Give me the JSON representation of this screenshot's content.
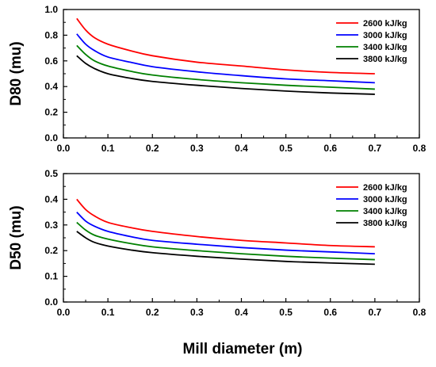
{
  "xlabel_shared": "Mill diameter (m)",
  "chart_data": [
    {
      "type": "line",
      "title": "",
      "xlabel": "",
      "ylabel": "D80 (mu)",
      "xlim": [
        0.0,
        0.8
      ],
      "ylim": [
        0.0,
        1.0
      ],
      "xticks": [
        "0.0",
        "0.1",
        "0.2",
        "0.3",
        "0.4",
        "0.5",
        "0.6",
        "0.7",
        "0.8"
      ],
      "yticks": [
        "0.0",
        "0.2",
        "0.4",
        "0.6",
        "0.8",
        "1.0"
      ],
      "grid": false,
      "legend_position": "top-right",
      "x": [
        0.03,
        0.05,
        0.07,
        0.1,
        0.15,
        0.2,
        0.3,
        0.4,
        0.5,
        0.6,
        0.7
      ],
      "series": [
        {
          "name": "2600 kJ/kg",
          "color": "#ff0000",
          "values": [
            0.93,
            0.84,
            0.78,
            0.73,
            0.68,
            0.64,
            0.59,
            0.56,
            0.53,
            0.51,
            0.5
          ]
        },
        {
          "name": "3000 kJ/kg",
          "color": "#0000ff",
          "values": [
            0.81,
            0.73,
            0.68,
            0.63,
            0.59,
            0.555,
            0.515,
            0.485,
            0.46,
            0.445,
            0.43
          ]
        },
        {
          "name": "3400 kJ/kg",
          "color": "#008000",
          "values": [
            0.72,
            0.65,
            0.6,
            0.56,
            0.52,
            0.49,
            0.455,
            0.43,
            0.41,
            0.395,
            0.38
          ]
        },
        {
          "name": "3800 kJ/kg",
          "color": "#000000",
          "values": [
            0.64,
            0.58,
            0.54,
            0.5,
            0.465,
            0.44,
            0.41,
            0.385,
            0.365,
            0.35,
            0.34
          ]
        }
      ]
    },
    {
      "type": "line",
      "title": "",
      "xlabel": "",
      "ylabel": "D50 (mu)",
      "xlim": [
        0.0,
        0.8
      ],
      "ylim": [
        0.0,
        0.5
      ],
      "xticks": [
        "0.0",
        "0.1",
        "0.2",
        "0.3",
        "0.4",
        "0.5",
        "0.6",
        "0.7",
        "0.8"
      ],
      "yticks": [
        "0.0",
        "0.1",
        "0.2",
        "0.3",
        "0.4",
        "0.5"
      ],
      "grid": false,
      "legend_position": "top-right",
      "x": [
        0.03,
        0.05,
        0.07,
        0.1,
        0.15,
        0.2,
        0.3,
        0.4,
        0.5,
        0.6,
        0.7
      ],
      "series": [
        {
          "name": "2600 kJ/kg",
          "color": "#ff0000",
          "values": [
            0.4,
            0.36,
            0.335,
            0.31,
            0.29,
            0.275,
            0.255,
            0.24,
            0.23,
            0.22,
            0.215
          ]
        },
        {
          "name": "3000 kJ/kg",
          "color": "#0000ff",
          "values": [
            0.35,
            0.315,
            0.295,
            0.275,
            0.255,
            0.24,
            0.225,
            0.212,
            0.202,
            0.195,
            0.188
          ]
        },
        {
          "name": "3400 kJ/kg",
          "color": "#008000",
          "values": [
            0.31,
            0.28,
            0.26,
            0.245,
            0.228,
            0.215,
            0.2,
            0.188,
            0.178,
            0.171,
            0.165
          ]
        },
        {
          "name": "3800 kJ/kg",
          "color": "#000000",
          "values": [
            0.275,
            0.25,
            0.232,
            0.218,
            0.203,
            0.192,
            0.178,
            0.167,
            0.158,
            0.152,
            0.147
          ]
        }
      ]
    }
  ]
}
